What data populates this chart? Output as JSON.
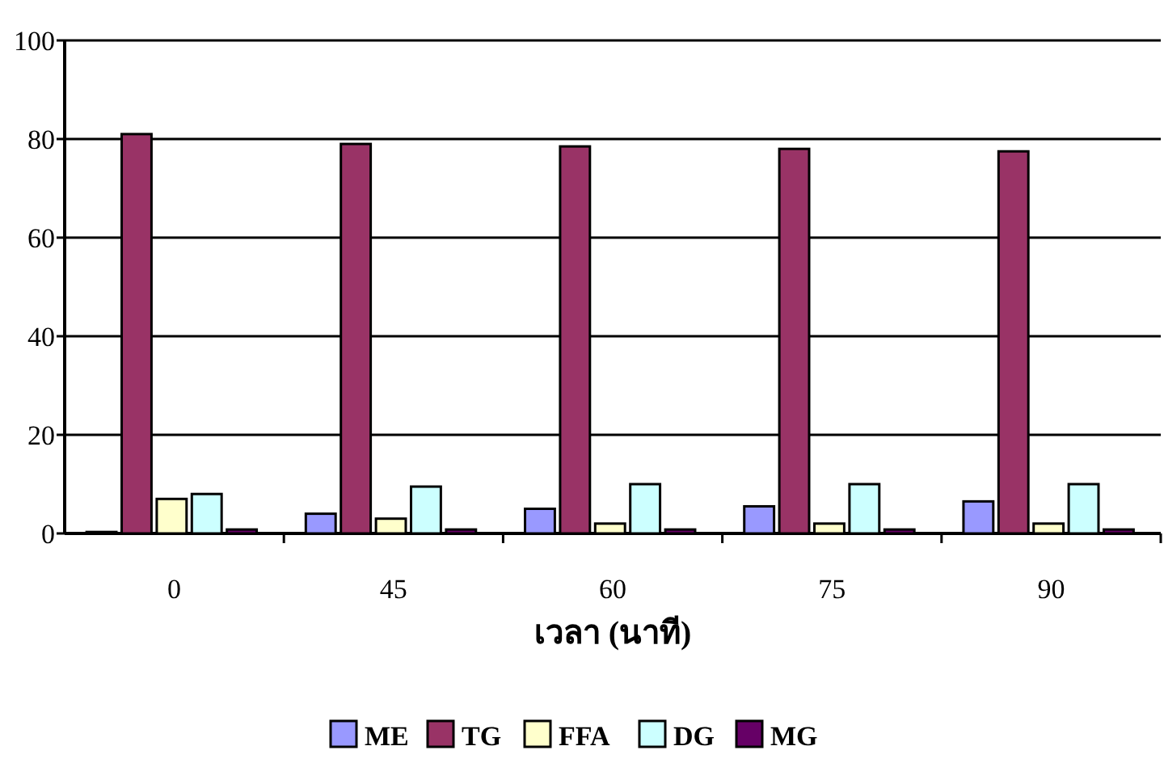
{
  "chart_data": {
    "type": "bar",
    "xlabel": "เวลา (นาที)",
    "categories": [
      "0",
      "45",
      "60",
      "75",
      "90"
    ],
    "series": [
      {
        "name": "ME",
        "color": "#9999ff",
        "values": [
          0.3,
          4,
          5,
          5.5,
          6.5
        ]
      },
      {
        "name": "TG",
        "color": "#993366",
        "values": [
          81,
          79,
          78.5,
          78,
          77.5
        ]
      },
      {
        "name": "FFA",
        "color": "#ffffcc",
        "values": [
          7,
          3,
          2,
          2,
          2
        ]
      },
      {
        "name": "DG",
        "color": "#ccffff",
        "values": [
          8,
          9.5,
          10,
          10,
          10
        ]
      },
      {
        "name": "MG",
        "color": "#660066",
        "values": [
          0.8,
          0.8,
          0.8,
          0.8,
          0.8
        ]
      }
    ],
    "ylim": [
      0,
      100
    ],
    "yticks": [
      0,
      20,
      40,
      60,
      80,
      100
    ],
    "grid": "y",
    "legend": "bottom"
  }
}
